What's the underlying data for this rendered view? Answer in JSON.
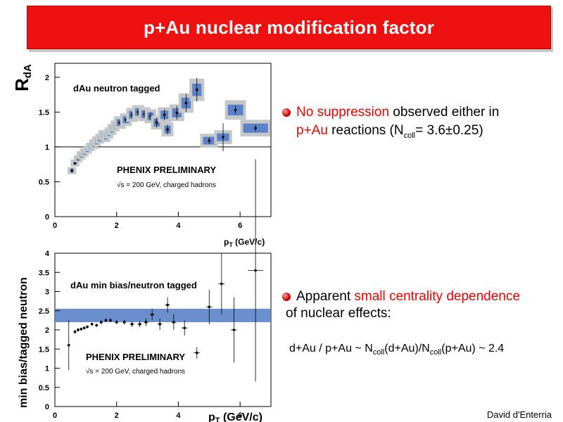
{
  "slide": {
    "title": "p+Au nuclear modification factor",
    "author": "David d'Enterria"
  },
  "bullets": [
    {
      "red_text": "No suppression",
      "text_after": " observed either in",
      "line2_red": "p+Au",
      "line2_text": " reactions (N",
      "line2_sub": "coll",
      "line2_tail": "= 3.6±0.25)"
    },
    {
      "text_before": "Apparent ",
      "red_text": "small centrality dependence",
      "line2_text": "of nuclear effects:",
      "formula_a": "d+Au / p+Au ~ N",
      "formula_sub1": "coll",
      "formula_b": "(d+Au)/N",
      "formula_sub2": "coll",
      "formula_c": "(p+Au) ~ 2.4"
    }
  ],
  "colors": {
    "title_bg": "#ee1111",
    "band": "#5b82c8",
    "syst": "#c4c8c8",
    "bullet": "#cc0000"
  },
  "chart_data": [
    {
      "type": "scatter",
      "ylabel_main": "R",
      "ylabel_sub": "dA",
      "xlabel_main": "p",
      "xlabel_sub": "T",
      "xlabel_unit": " (GeV/c)",
      "legend": "dAu neutron tagged",
      "annotation": "PHENIX PRELIMINARY",
      "annotation2": "√s = 200 GeV, charged hadrons",
      "xlim": [
        0,
        7
      ],
      "ylim": [
        0,
        2.2
      ],
      "xticks": [
        0,
        2,
        4,
        6
      ],
      "xtick_labels": [
        "0",
        "2",
        "4",
        "6"
      ],
      "yticks": [
        0,
        0.5,
        1,
        1.5,
        2
      ],
      "ytick_labels": [
        "0",
        "0.5",
        "1",
        "1.5",
        "2"
      ],
      "reference_line": 1,
      "points": [
        {
          "x": 0.55,
          "y": 0.66,
          "err": 0.03,
          "sys": 0.05,
          "w": 0.1
        },
        {
          "x": 0.65,
          "y": 0.77,
          "err": 0.02,
          "sys": 0.05,
          "w": 0.1
        },
        {
          "x": 0.75,
          "y": 0.83,
          "err": 0.02,
          "sys": 0.05,
          "w": 0.1
        },
        {
          "x": 0.85,
          "y": 0.88,
          "err": 0.02,
          "sys": 0.06,
          "w": 0.1
        },
        {
          "x": 0.95,
          "y": 0.92,
          "err": 0.02,
          "sys": 0.06,
          "w": 0.1
        },
        {
          "x": 1.05,
          "y": 0.96,
          "err": 0.02,
          "sys": 0.06,
          "w": 0.1
        },
        {
          "x": 1.15,
          "y": 1.0,
          "err": 0.02,
          "sys": 0.06,
          "w": 0.1
        },
        {
          "x": 1.25,
          "y": 1.04,
          "err": 0.02,
          "sys": 0.07,
          "w": 0.1
        },
        {
          "x": 1.35,
          "y": 1.08,
          "err": 0.02,
          "sys": 0.07,
          "w": 0.1
        },
        {
          "x": 1.45,
          "y": 1.12,
          "err": 0.02,
          "sys": 0.07,
          "w": 0.1
        },
        {
          "x": 1.55,
          "y": 1.17,
          "err": 0.02,
          "sys": 0.07,
          "w": 0.1
        },
        {
          "x": 1.65,
          "y": 1.15,
          "err": 0.02,
          "sys": 0.08,
          "w": 0.1
        },
        {
          "x": 1.75,
          "y": 1.2,
          "err": 0.02,
          "sys": 0.08,
          "w": 0.1
        },
        {
          "x": 1.85,
          "y": 1.25,
          "err": 0.02,
          "sys": 0.08,
          "w": 0.1
        },
        {
          "x": 1.95,
          "y": 1.3,
          "err": 0.02,
          "sys": 0.08,
          "w": 0.1
        },
        {
          "x": 2.1,
          "y": 1.35,
          "err": 0.03,
          "sys": 0.09,
          "w": 0.2
        },
        {
          "x": 2.3,
          "y": 1.39,
          "err": 0.03,
          "sys": 0.09,
          "w": 0.2
        },
        {
          "x": 2.5,
          "y": 1.46,
          "err": 0.04,
          "sys": 0.1,
          "w": 0.2
        },
        {
          "x": 2.7,
          "y": 1.5,
          "err": 0.05,
          "sys": 0.1,
          "w": 0.2
        },
        {
          "x": 2.9,
          "y": 1.47,
          "err": 0.05,
          "sys": 0.1,
          "w": 0.2
        },
        {
          "x": 3.1,
          "y": 1.44,
          "err": 0.06,
          "sys": 0.1,
          "w": 0.2
        },
        {
          "x": 3.3,
          "y": 1.35,
          "err": 0.07,
          "sys": 0.1,
          "w": 0.2
        },
        {
          "x": 3.55,
          "y": 1.46,
          "err": 0.08,
          "sys": 0.11,
          "w": 0.25
        },
        {
          "x": 3.65,
          "y": 1.25,
          "err": 0.07,
          "sys": 0.1,
          "w": 0.2
        },
        {
          "x": 3.95,
          "y": 1.49,
          "err": 0.1,
          "sys": 0.12,
          "w": 0.3
        },
        {
          "x": 4.25,
          "y": 1.63,
          "err": 0.13,
          "sys": 0.14,
          "w": 0.3
        },
        {
          "x": 4.6,
          "y": 1.82,
          "err": 0.17,
          "sys": 0.16,
          "w": 0.3
        },
        {
          "x": 5.0,
          "y": 1.09,
          "err": 0.05,
          "sys": 0.1,
          "w": 0.4
        },
        {
          "x": 5.45,
          "y": 1.14,
          "err": 0.2,
          "sys": 0.1,
          "w": 0.4
        },
        {
          "x": 5.85,
          "y": 1.53,
          "err": 0.06,
          "sys": 0.14,
          "w": 0.5
        },
        {
          "x": 6.5,
          "y": 1.27,
          "err": 0.05,
          "sys": 0.12,
          "w": 0.8
        }
      ]
    },
    {
      "type": "scatter",
      "ylabel": "min bias/tagged neutron",
      "xlabel_main": "p",
      "xlabel_sub": "T",
      "xlabel_unit": " (GeV/c)",
      "legend": "dAu min bias/neutron tagged",
      "annotation": "PHENIX PRELIMINARY",
      "annotation2": "√s = 200 GeV, charged hadrons",
      "xlim": [
        0,
        7
      ],
      "ylim": [
        0,
        4
      ],
      "xticks": [
        0,
        2,
        4,
        6
      ],
      "xtick_labels": [
        "0",
        "2",
        "4",
        "6"
      ],
      "yticks": [
        0,
        0.5,
        1,
        1.5,
        2,
        2.5,
        3,
        3.5,
        4
      ],
      "ytick_labels": [
        "0",
        "0.5",
        "1",
        "1.5",
        "2",
        "2.5",
        "3",
        "3.5",
        "4"
      ],
      "band": [
        2.2,
        2.55
      ],
      "points": [
        {
          "x": 0.45,
          "y": 1.6,
          "err": 0.65,
          "w": 0.05
        },
        {
          "x": 0.65,
          "y": 1.95,
          "err": 0.05,
          "w": 0.05
        },
        {
          "x": 0.75,
          "y": 2.0,
          "err": 0.05,
          "w": 0.05
        },
        {
          "x": 0.85,
          "y": 2.02,
          "err": 0.04,
          "w": 0.05
        },
        {
          "x": 0.95,
          "y": 2.05,
          "err": 0.04,
          "w": 0.05
        },
        {
          "x": 1.05,
          "y": 2.08,
          "err": 0.04,
          "w": 0.05
        },
        {
          "x": 1.2,
          "y": 2.15,
          "err": 0.04,
          "w": 0.05
        },
        {
          "x": 1.35,
          "y": 2.12,
          "err": 0.04,
          "w": 0.05
        },
        {
          "x": 1.5,
          "y": 2.2,
          "err": 0.05,
          "w": 0.05
        },
        {
          "x": 1.65,
          "y": 2.25,
          "err": 0.05,
          "w": 0.05
        },
        {
          "x": 1.8,
          "y": 2.25,
          "err": 0.05,
          "w": 0.05
        },
        {
          "x": 2.0,
          "y": 2.2,
          "err": 0.05,
          "w": 0.1
        },
        {
          "x": 2.25,
          "y": 2.2,
          "err": 0.06,
          "w": 0.1
        },
        {
          "x": 2.5,
          "y": 2.15,
          "err": 0.07,
          "w": 0.15
        },
        {
          "x": 2.75,
          "y": 2.15,
          "err": 0.08,
          "w": 0.15
        },
        {
          "x": 2.95,
          "y": 2.2,
          "err": 0.1,
          "w": 0.15
        },
        {
          "x": 3.15,
          "y": 2.4,
          "err": 0.15,
          "w": 0.15
        },
        {
          "x": 3.4,
          "y": 2.15,
          "err": 0.15,
          "w": 0.15
        },
        {
          "x": 3.65,
          "y": 2.65,
          "err": 0.2,
          "w": 0.15
        },
        {
          "x": 3.85,
          "y": 2.2,
          "err": 0.2,
          "w": 0.15
        },
        {
          "x": 4.2,
          "y": 2.05,
          "err": 0.2,
          "w": 0.2
        },
        {
          "x": 4.6,
          "y": 1.4,
          "err": 0.15,
          "w": 0.2
        },
        {
          "x": 5.0,
          "y": 2.6,
          "err": 0.45,
          "w": 0.2
        },
        {
          "x": 5.4,
          "y": 3.2,
          "err": 0.8,
          "w": 0.2
        },
        {
          "x": 5.8,
          "y": 2.0,
          "err": 0.85,
          "w": 0.2
        },
        {
          "x": 6.5,
          "y": 3.55,
          "err": 2.9,
          "w": 0.5
        }
      ]
    }
  ]
}
